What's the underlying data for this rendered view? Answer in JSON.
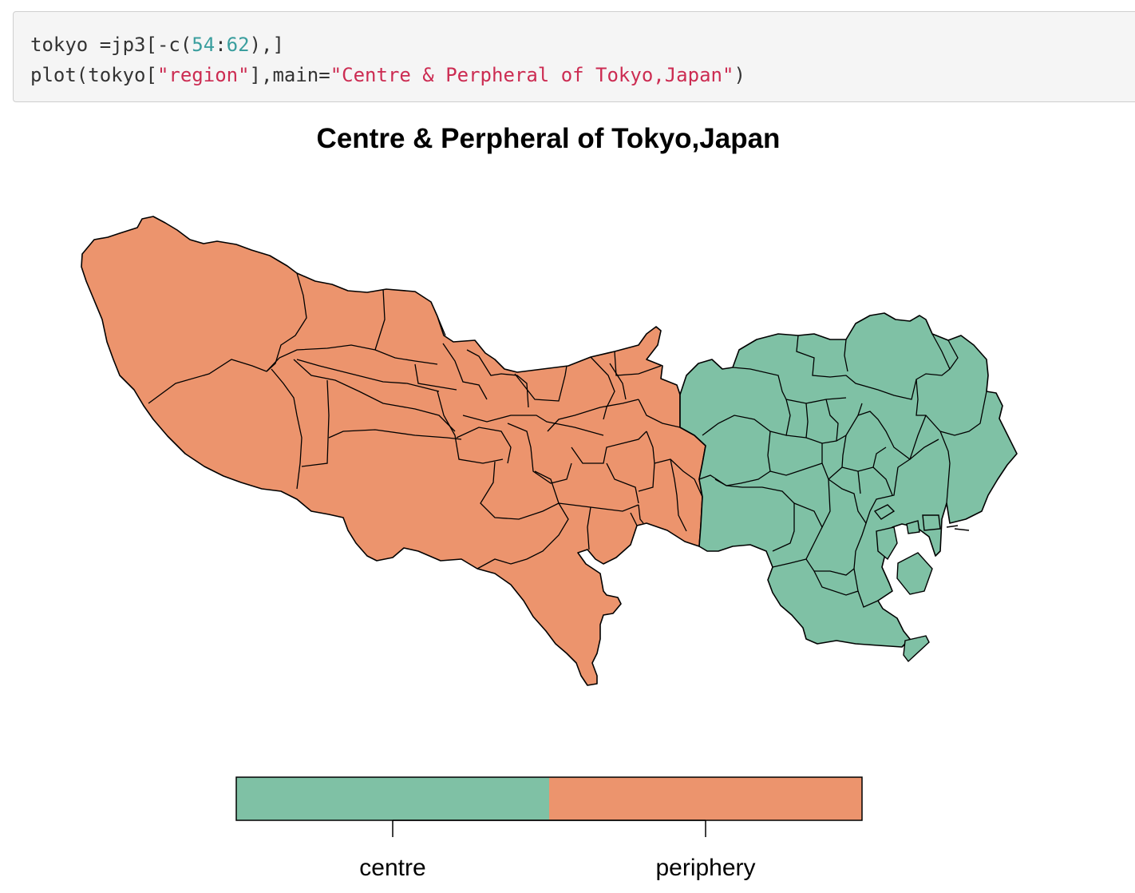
{
  "code_cell": {
    "line1": {
      "p1": "tokyo =jp3[-c(",
      "n1": "54",
      "p2": ":",
      "n2": "62",
      "p3": "),]"
    },
    "line2": {
      "p1": "plot(tokyo[",
      "s1": "\"region\"",
      "p2": "],main=",
      "s2": "\"Centre & Perpheral of Tokyo,Japan\"",
      "p3": ")"
    }
  },
  "plot": {
    "title": "Centre & Perpheral of Tokyo,Japan",
    "legend": [
      {
        "label": "centre",
        "color": "#7fc1a5"
      },
      {
        "label": "periphery",
        "color": "#ec946d"
      }
    ]
  },
  "colors": {
    "centre": "#7fc1a5",
    "periphery": "#ec946d",
    "border": "#000000",
    "code_bg": "#f5f5f5",
    "code_number": "#3a9e9e",
    "code_string": "#cc2c52"
  }
}
